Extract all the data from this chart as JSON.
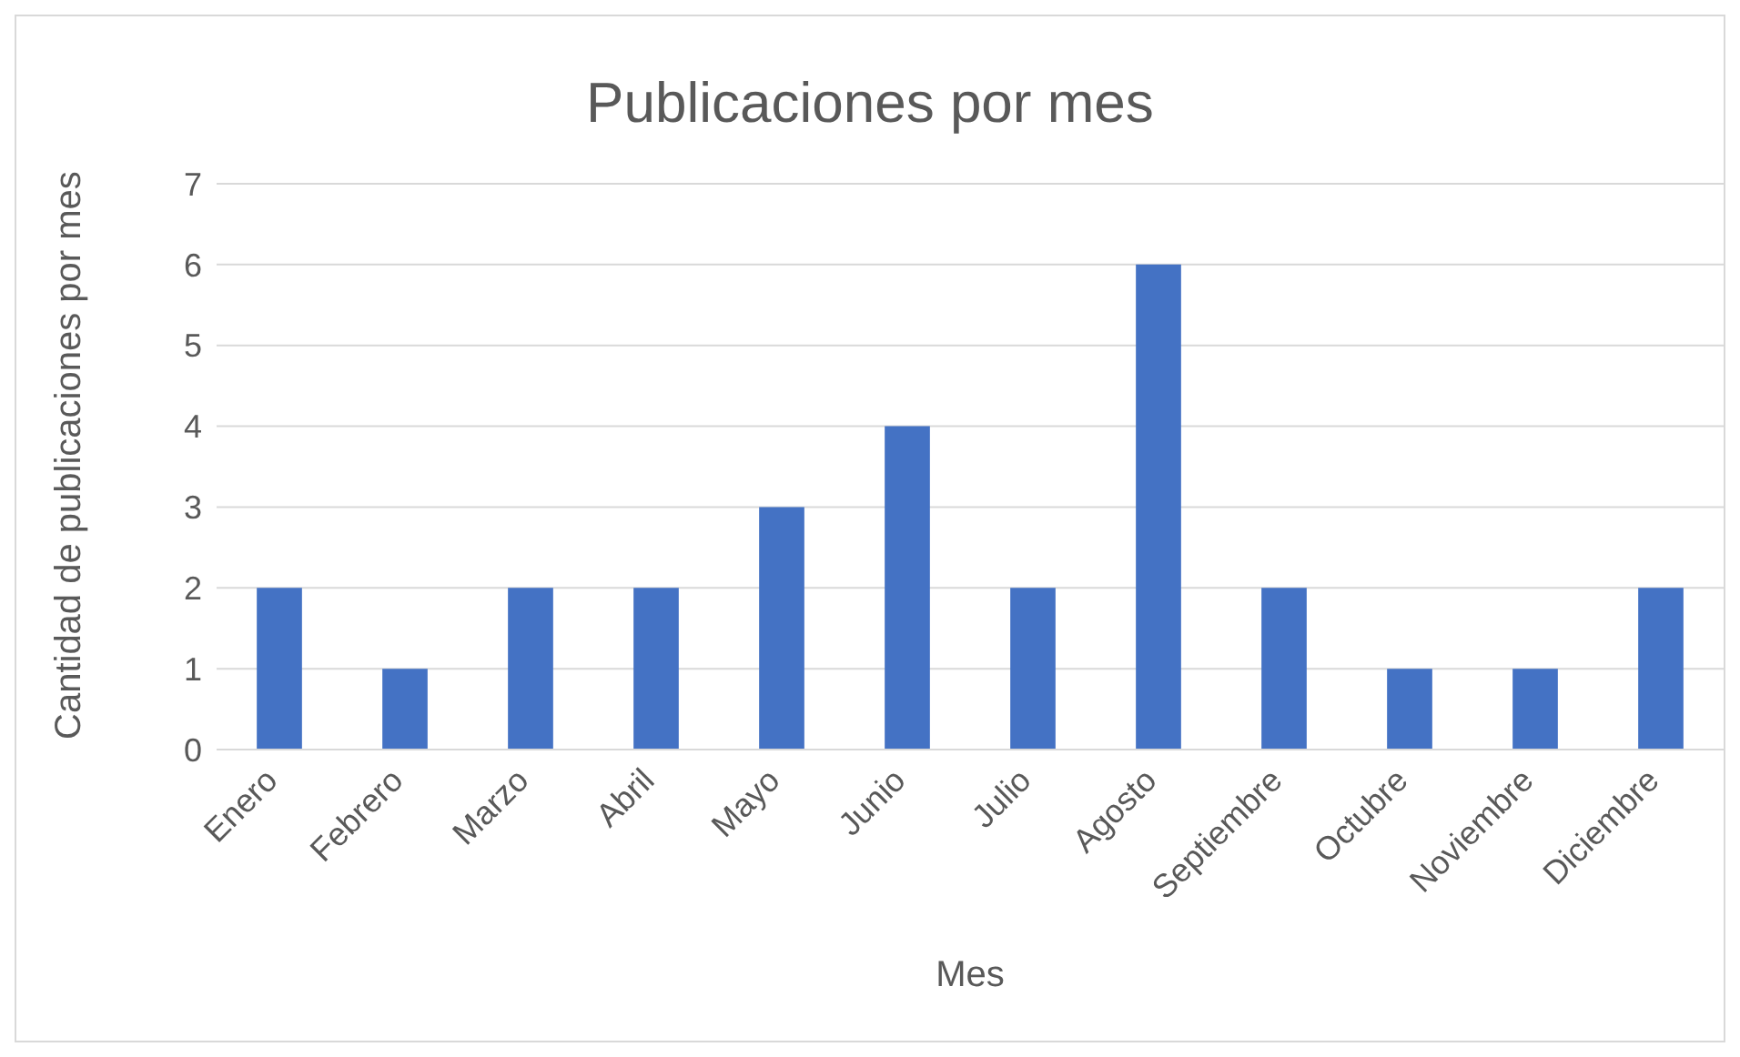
{
  "chart_data": {
    "type": "bar",
    "title": "Publicaciones por mes",
    "xlabel": "Mes",
    "ylabel": "Cantidad de publicaciones por mes",
    "categories": [
      "Enero",
      "Febrero",
      "Marzo",
      "Abril",
      "Mayo",
      "Junio",
      "Julio",
      "Agosto",
      "Septiembre",
      "Octubre",
      "Noviembre",
      "Diciembre"
    ],
    "values": [
      2,
      1,
      2,
      2,
      3,
      4,
      2,
      6,
      2,
      1,
      1,
      2
    ],
    "color": "#4472c4",
    "ylim": [
      0,
      7
    ],
    "yticks": [
      0,
      1,
      2,
      3,
      4,
      5,
      6,
      7
    ],
    "grid": "y",
    "legend": false
  }
}
